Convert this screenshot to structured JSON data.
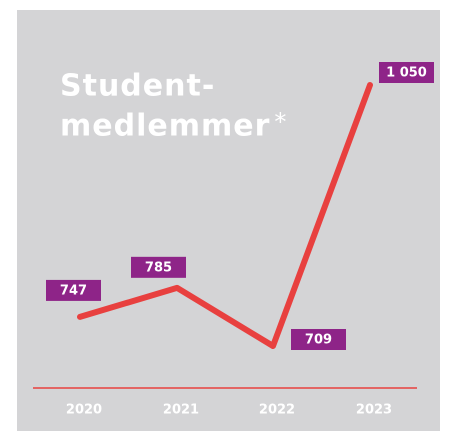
{
  "chart_data": {
    "type": "line",
    "title": [
      "Student-",
      "medlemmer"
    ],
    "title_note": "*",
    "categories": [
      "2020",
      "2021",
      "2022",
      "2023"
    ],
    "values": [
      747,
      785,
      709,
      1050
    ],
    "value_labels": [
      "747",
      "785",
      "709",
      "1 050"
    ],
    "color": "#e8403f",
    "label_color": "#8e2488"
  }
}
